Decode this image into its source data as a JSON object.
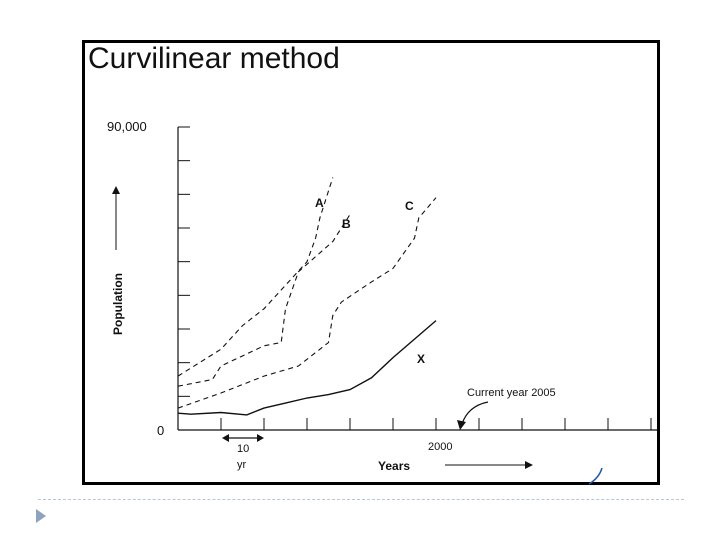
{
  "slide": {
    "title": "Curvilinear method"
  },
  "chart_data": {
    "type": "line",
    "title": "",
    "xlabel": "Years",
    "ylabel": "Population",
    "y_tick_labels": {
      "top": "90,000",
      "bottom": "0"
    },
    "x_tick_label": "2000",
    "scale_marker": {
      "line1": "10",
      "line2": "yr"
    },
    "annotation": "Current year 2005",
    "ylim": [
      0,
      90000
    ],
    "series": [
      {
        "name": "A",
        "style": "dashed",
        "x": [
          1940,
          1950,
          1955,
          1960,
          1970,
          1972,
          1973,
          1976
        ],
        "y": [
          16000,
          24000,
          31000,
          36000,
          50000,
          57000,
          63000,
          75000
        ]
      },
      {
        "name": "B",
        "style": "dashed",
        "x": [
          1940,
          1948,
          1950,
          1960,
          1964,
          1965,
          1968,
          1976,
          1980
        ],
        "y": [
          13000,
          15000,
          19000,
          25000,
          26000,
          36000,
          47000,
          56000,
          64000
        ]
      },
      {
        "name": "C",
        "style": "dashed",
        "x": [
          1940,
          1950,
          1960,
          1968,
          1975,
          1976,
          1978,
          1985,
          1990,
          1995,
          1996,
          2000
        ],
        "y": [
          6500,
          11000,
          16000,
          19000,
          26000,
          34000,
          38000,
          44000,
          48000,
          57000,
          63000,
          69000
        ]
      },
      {
        "name": "X",
        "style": "solid",
        "x": [
          1940,
          1943,
          1950,
          1956,
          1960,
          1965,
          1970,
          1975,
          1980,
          1985,
          1990,
          1995,
          2000
        ],
        "y": [
          5000,
          4700,
          5200,
          4500,
          6500,
          8000,
          9500,
          10500,
          12000,
          15500,
          21500,
          27000,
          32500
        ]
      }
    ]
  },
  "colors": {
    "line": "#111111",
    "frame": "#000000",
    "divider": "#b9c6d3",
    "bullet": "#8ea3bd"
  }
}
